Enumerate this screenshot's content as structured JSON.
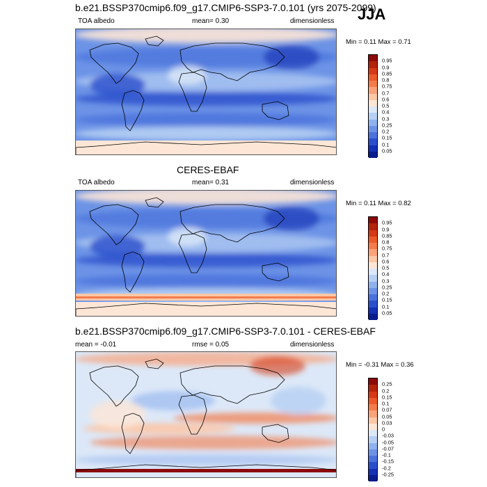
{
  "season": "JJA",
  "panels": [
    {
      "title": "b.e21.BSSP370cmip6.f09_g17.CMIP6-SSP3-7.0.101 (yrs 2075-2099)",
      "left_label": "TOA albedo",
      "center_label": "mean=   0.30",
      "right_label": "dimensionless",
      "minmax": "Min =   0.11 Max =   0.71",
      "map_type": "model",
      "colorbar": {
        "labels": [
          "0.95",
          "0.9",
          "0.85",
          "0.8",
          "0.75",
          "0.7",
          "0.6",
          "0.5",
          "0.4",
          "0.3",
          "0.25",
          "0.2",
          "0.15",
          "0.1",
          "0.05"
        ],
        "colors": [
          "#8c0a0a",
          "#b3240c",
          "#d63a16",
          "#ec5a2a",
          "#f47c4a",
          "#f9a37a",
          "#fcc8a8",
          "#fde6d6",
          "#dce8f8",
          "#b6cff3",
          "#8fb2ee",
          "#6c93e6",
          "#4a72dc",
          "#2a4fcc",
          "#1430b4",
          "#081c8c"
        ]
      }
    },
    {
      "title": "CERES-EBAF",
      "left_label": "TOA albedo",
      "center_label": "mean=   0.31",
      "right_label": "dimensionless",
      "minmax": "Min =   0.11 Max =   0.82",
      "map_type": "obs",
      "colorbar": {
        "labels": [
          "0.95",
          "0.9",
          "0.85",
          "0.8",
          "0.75",
          "0.7",
          "0.6",
          "0.5",
          "0.4",
          "0.3",
          "0.25",
          "0.2",
          "0.15",
          "0.1",
          "0.05"
        ],
        "colors": [
          "#8c0a0a",
          "#b3240c",
          "#d63a16",
          "#ec5a2a",
          "#f47c4a",
          "#f9a37a",
          "#fcc8a8",
          "#fde6d6",
          "#dce8f8",
          "#b6cff3",
          "#8fb2ee",
          "#6c93e6",
          "#4a72dc",
          "#2a4fcc",
          "#1430b4",
          "#081c8c"
        ]
      }
    },
    {
      "title": "b.e21.BSSP370cmip6.f09_g17.CMIP6-SSP3-7.0.101 - CERES-EBAF",
      "left_label": "mean =  -0.01",
      "center_label": "rmse =   0.05",
      "right_label": "dimensionless",
      "minmax": "Min =  -0.31 Max =   0.36",
      "map_type": "diff",
      "colorbar": {
        "labels": [
          "0.25",
          "0.2",
          "0.15",
          "0.1",
          "0.07",
          "0.05",
          "0.03",
          "0",
          "-0.03",
          "-0.05",
          "-0.07",
          "-0.1",
          "-0.15",
          "-0.2",
          "-0.25"
        ],
        "colors": [
          "#8c0a0a",
          "#b3240c",
          "#d63a16",
          "#ec5a2a",
          "#f47c4a",
          "#f9a37a",
          "#fcc8a8",
          "#fde6d6",
          "#dce8f8",
          "#b6cff3",
          "#8fb2ee",
          "#6c93e6",
          "#4a72dc",
          "#2a4fcc",
          "#1430b4",
          "#081c8c"
        ]
      }
    }
  ]
}
